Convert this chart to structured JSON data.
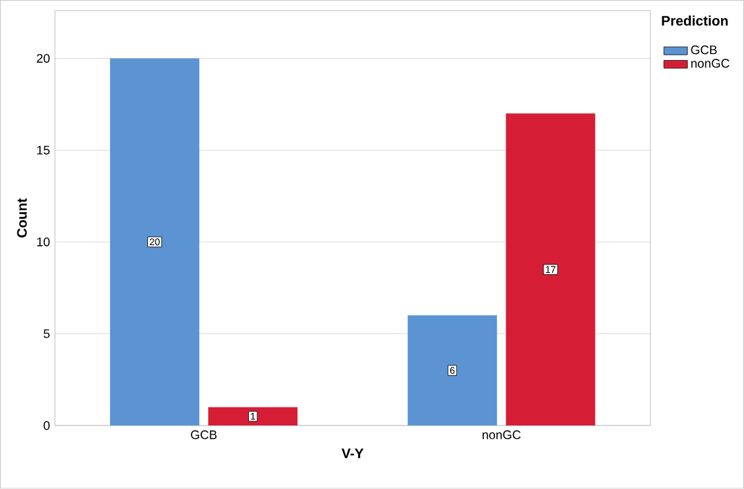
{
  "chart_data": {
    "type": "bar",
    "categories": [
      "GCB",
      "nonGC"
    ],
    "series": [
      {
        "name": "GCB",
        "color": "#5b93d3",
        "values": [
          20,
          6
        ]
      },
      {
        "name": "nonGC",
        "color": "#d51e36",
        "values": [
          1,
          17
        ]
      }
    ],
    "xlabel": "V-Y",
    "ylabel": "Count",
    "legend_title": "Prediction",
    "ylim": [
      0,
      22.6
    ],
    "yticks": [
      0,
      5,
      10,
      15,
      20
    ],
    "grid": "y",
    "legend": "top right",
    "data_labels": true
  }
}
